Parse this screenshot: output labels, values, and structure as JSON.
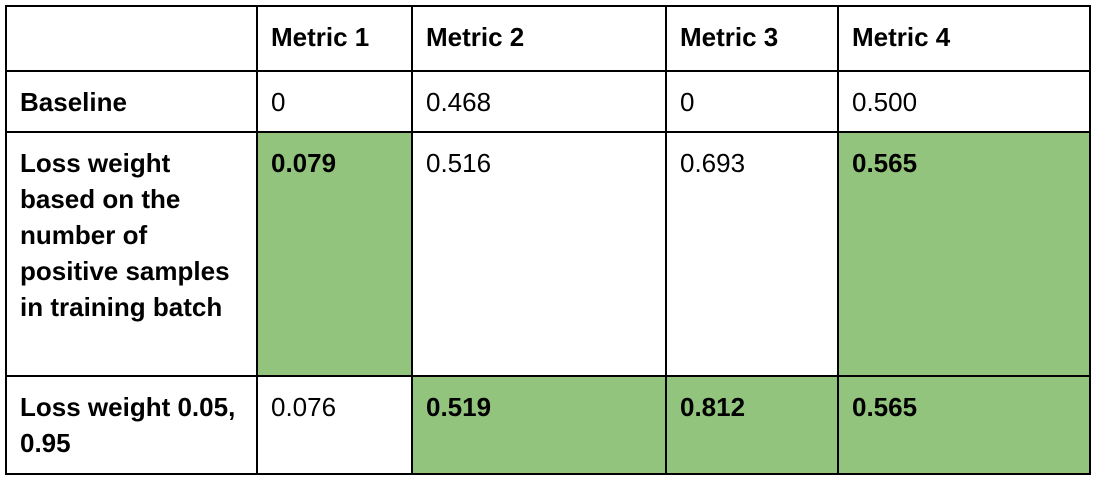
{
  "table": {
    "headers": [
      "",
      "Metric 1",
      "Metric 2",
      "Metric 3",
      "Metric 4"
    ],
    "rows": [
      {
        "label": "Baseline",
        "cells": [
          {
            "value": "0",
            "highlighted": false
          },
          {
            "value": "0.468",
            "highlighted": false
          },
          {
            "value": "0",
            "highlighted": false
          },
          {
            "value": "0.500",
            "highlighted": false
          }
        ]
      },
      {
        "label": "Loss weight based on the number of positive samples in training batch",
        "cells": [
          {
            "value": "0.079",
            "highlighted": true
          },
          {
            "value": "0.516",
            "highlighted": false
          },
          {
            "value": "0.693",
            "highlighted": false
          },
          {
            "value": "0.565",
            "highlighted": true
          }
        ]
      },
      {
        "label": "Loss weight 0.05, 0.95",
        "cells": [
          {
            "value": "0.076",
            "highlighted": false
          },
          {
            "value": "0.519",
            "highlighted": true
          },
          {
            "value": "0.812",
            "highlighted": true
          },
          {
            "value": "0.565",
            "highlighted": true
          }
        ]
      }
    ]
  },
  "colors": {
    "highlight": "#93c47d",
    "border": "#000000"
  }
}
